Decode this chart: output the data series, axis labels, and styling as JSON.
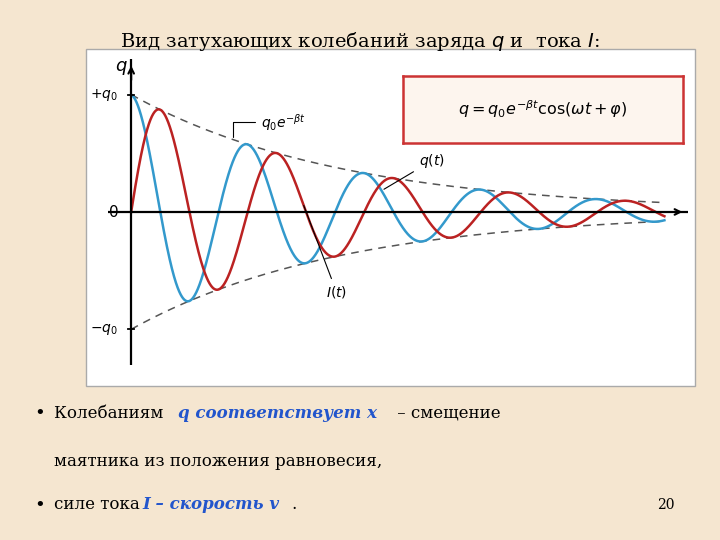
{
  "bg_color": "#f5e6d0",
  "plot_bg_color": "#ffffff",
  "beta": 0.22,
  "omega": 2.5,
  "phi_q": 0.0,
  "phi_I": -1.5708,
  "t_max": 11.5,
  "q_color": "#3399cc",
  "I_color": "#bb2222",
  "envelope_color": "#555555",
  "label_env": "$q_0e^{-\\beta t}$",
  "label_q": "$q(t)$",
  "label_I": "$I(t)$",
  "label_yaxis": "$q$",
  "label_p_q0": "$+q_0$",
  "label_m_q0": "$-q_0$",
  "label_0": "$0$",
  "formula_text": "$q = q_0e^{-\\beta t}\\cos(\\omega t + \\varphi)$",
  "formula_box_color": "#cc3333",
  "title": "Вид затухающих колебаний заряда $q$ и  тока $I$:",
  "title_fontsize": 14,
  "bullet_q_color": "#2255cc",
  "bullet_I_color": "#2255cc",
  "bottom1_pre": "     Колебаниям ",
  "bottom1_colored": "q соответствует x",
  "bottom1_post": " – смещение",
  "bottom2": "маятника из положения равновесия,",
  "bottom3_pre": "  силе тока   ",
  "bottom3_colored": "I – скорость v",
  "bottom3_post": ".",
  "page_num": "20"
}
